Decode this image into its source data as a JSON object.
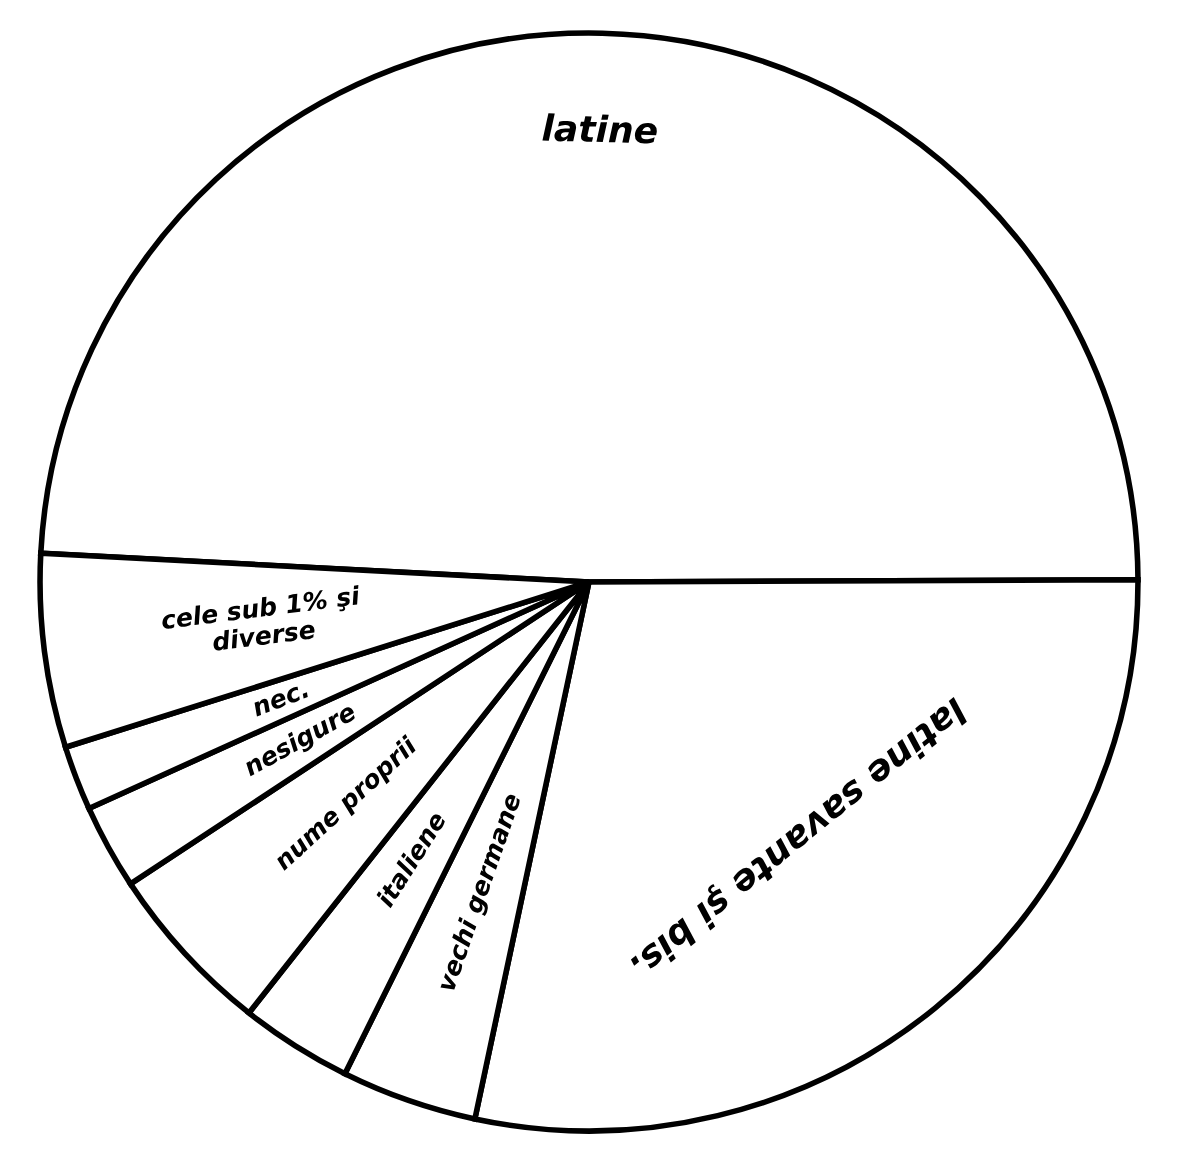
{
  "chart_data": {
    "type": "pie",
    "categories": [
      "latine",
      "latine savante şi bis.",
      "vechi germane",
      "italiene",
      "nume proprii",
      "nesigure",
      "nec.",
      "cele sub 1% şi\ndiverse"
    ],
    "values": [
      49.1,
      28.4,
      4.0,
      3.3,
      5.1,
      2.5,
      1.9,
      5.7
    ],
    "colors": [
      "#ffffff",
      "#ffffff",
      "#ffffff",
      "#ffffff",
      "#ffffff",
      "#ffffff",
      "#ffffff",
      "#ffffff"
    ],
    "legend": false
  }
}
